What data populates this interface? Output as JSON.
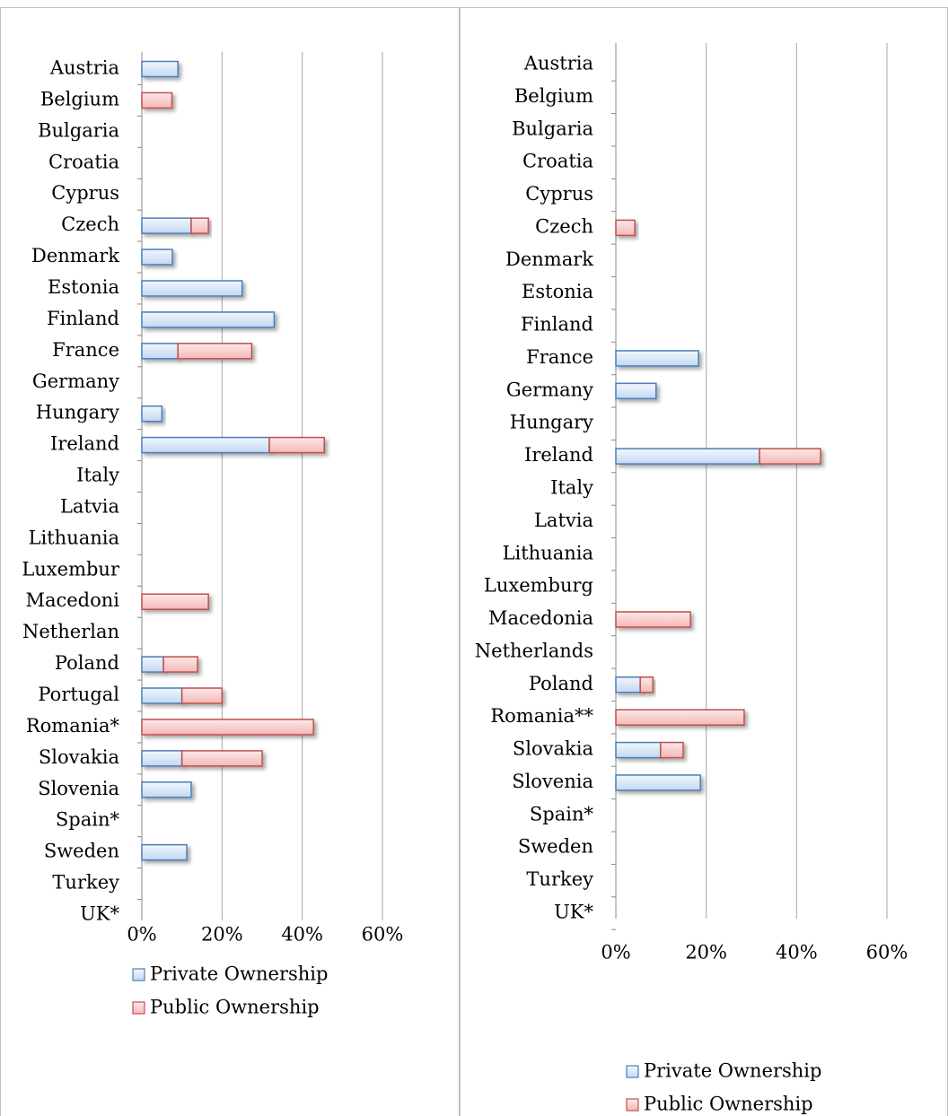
{
  "chart_data": [
    {
      "type": "bar",
      "orientation": "horizontal",
      "stacked": true,
      "categories": [
        "Austria",
        "Belgium",
        "Bulgaria",
        "Croatia",
        "Cyprus",
        "Czech",
        "Denmark",
        "Estonia",
        "Finland",
        "France",
        "Germany",
        "Hungary",
        "Ireland",
        "Italy",
        "Latvia",
        "Lithuania",
        "Luxembur",
        "Macedoni",
        "Netherlan",
        "Poland",
        "Portugal",
        "Romania*",
        "Slovakia",
        "Slovenia",
        "Spain*",
        "Sweden",
        "Turkey",
        "UK*"
      ],
      "series": [
        {
          "name": "Private Ownership",
          "color": "#4a7ebb",
          "values": [
            9,
            0,
            0,
            0,
            0,
            12.3,
            7.6,
            25,
            33,
            9,
            0,
            5,
            31.8,
            0,
            0,
            0,
            0,
            0,
            0,
            5.4,
            10,
            0,
            10,
            12.3,
            0,
            11.2,
            0,
            0
          ]
        },
        {
          "name": "Public Ownership",
          "color": "#c0504d",
          "values": [
            0,
            7.5,
            0,
            0,
            0,
            4.3,
            0,
            0,
            0,
            18.4,
            0,
            0,
            13.7,
            0,
            0,
            0,
            0,
            16.6,
            0,
            8.5,
            10,
            42.8,
            20,
            0,
            0,
            0,
            0,
            0
          ]
        }
      ],
      "xlim": [
        0,
        60
      ],
      "xticks": [
        {
          "value": 0,
          "label": "0%"
        },
        {
          "value": 20,
          "label": "20%"
        },
        {
          "value": 40,
          "label": "40%"
        },
        {
          "value": 60,
          "label": "60%"
        }
      ],
      "grid": true
    },
    {
      "type": "bar",
      "orientation": "horizontal",
      "stacked": true,
      "categories": [
        "Austria",
        "Belgium",
        "Bulgaria",
        "Croatia",
        "Cyprus",
        "Czech",
        "Denmark",
        "Estonia",
        "Finland",
        "France",
        "Germany",
        "Hungary",
        "Ireland",
        "Italy",
        "Latvia",
        "Lithuania",
        "Luxemburg",
        "Macedonia",
        "Netherlands",
        "Poland",
        "Romania**",
        "Slovakia",
        "Slovenia",
        "Spain*",
        "Sweden",
        "Turkey",
        "UK*"
      ],
      "series": [
        {
          "name": "Private Ownership",
          "color": "#4a7ebb",
          "values": [
            0,
            0,
            0,
            0,
            0,
            0,
            0,
            0,
            0,
            18.3,
            8.9,
            0,
            31.8,
            0,
            0,
            0,
            0,
            0,
            0,
            5.4,
            0,
            9.9,
            18.7,
            0,
            0,
            0,
            0
          ]
        },
        {
          "name": "Public Ownership",
          "color": "#c0504d",
          "values": [
            0,
            0,
            0,
            0,
            0,
            4.2,
            0,
            0,
            0,
            0,
            0,
            0,
            13.5,
            0,
            0,
            0,
            0,
            16.5,
            0,
            2.8,
            28.4,
            5,
            0,
            0,
            0,
            0,
            0
          ]
        }
      ],
      "xlim": [
        0,
        60
      ],
      "xticks": [
        {
          "value": 0,
          "label": "0%"
        },
        {
          "value": 20,
          "label": "20%"
        },
        {
          "value": 40,
          "label": "40%"
        },
        {
          "value": 60,
          "label": "60%"
        }
      ],
      "grid": true
    }
  ]
}
